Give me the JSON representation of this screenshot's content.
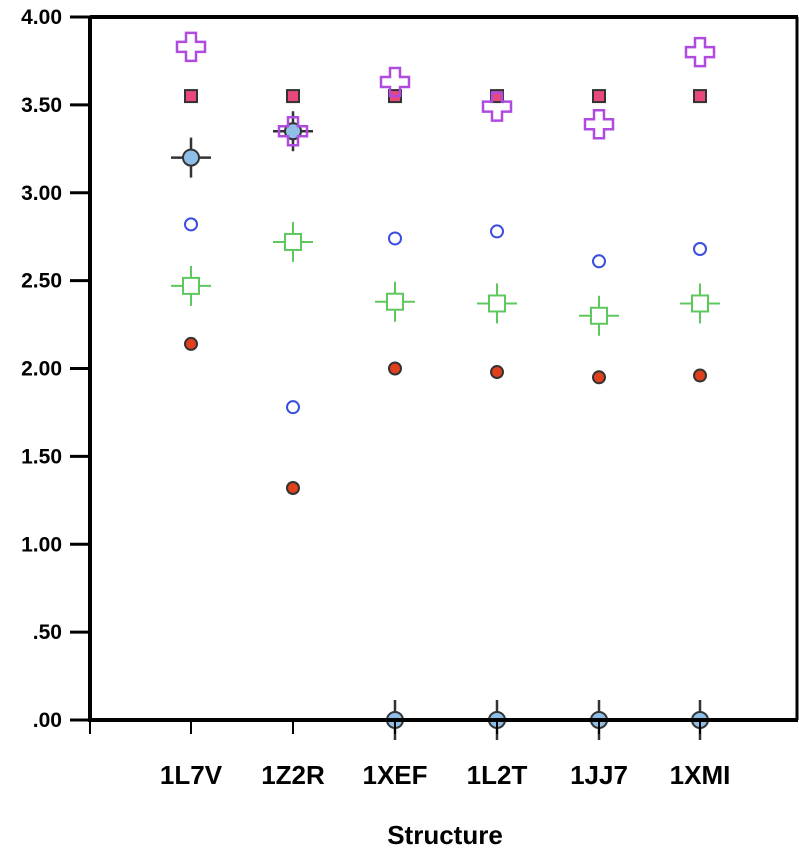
{
  "chart_data": {
    "type": "scatter",
    "title": "",
    "xlabel": "Structure",
    "ylabel": "",
    "categories": [
      "1L7V",
      "1Z2R",
      "1XEF",
      "1L2T",
      "1JJ7",
      "1XMI"
    ],
    "y_ticks": [
      ".00",
      ".50",
      "1.00",
      "1.50",
      "2.00",
      "2.50",
      "3.00",
      "3.50",
      "4.00"
    ],
    "ylim": [
      0,
      4
    ],
    "grid": false,
    "series": [
      {
        "marker": "pink-square",
        "color": "#e8487a",
        "values": [
          3.55,
          3.55,
          3.55,
          3.55,
          3.55,
          3.55
        ]
      },
      {
        "marker": "purple-cross",
        "color": "#b04be0",
        "values": [
          3.83,
          3.35,
          3.63,
          3.49,
          3.39,
          3.8
        ]
      },
      {
        "marker": "lightblue-circle-with-error-bar",
        "color": "#8fbfe8",
        "values": [
          3.2,
          3.35,
          0.0,
          0.0,
          0.0,
          0.0
        ]
      },
      {
        "marker": "blue-open-circle",
        "color": "#3a4de0",
        "values": [
          2.82,
          1.78,
          2.74,
          2.78,
          2.61,
          2.68
        ]
      },
      {
        "marker": "green-open-square-cross",
        "color": "#5ec85e",
        "values": [
          2.47,
          2.72,
          2.38,
          2.37,
          2.3,
          2.37
        ]
      },
      {
        "marker": "red-filled-circle",
        "color": "#e0401e",
        "values": [
          2.14,
          1.32,
          2.0,
          1.98,
          1.95,
          1.96
        ]
      }
    ]
  }
}
